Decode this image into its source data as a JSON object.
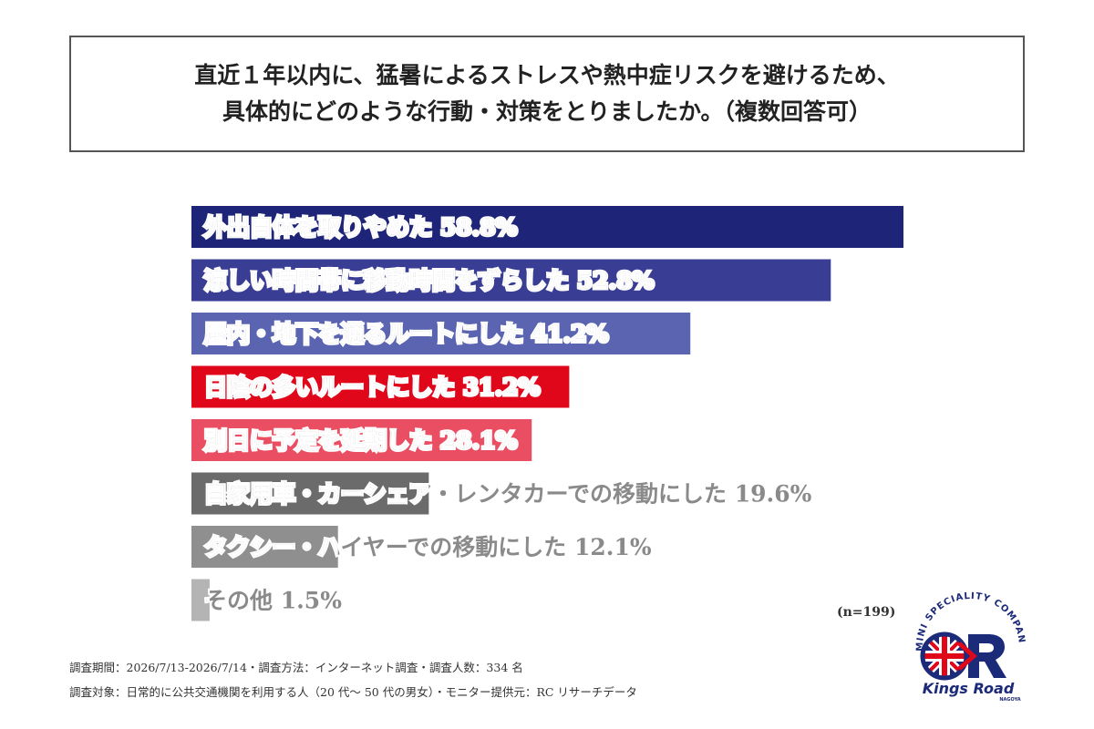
{
  "title": {
    "line1": "直近１年以内に、猛暑によるストレスや熱中症リスクを避けるため、",
    "line2": "具体的にどのような行動・対策をとりましたか。（複数回答可）"
  },
  "chart_data": {
    "type": "bar",
    "orientation": "horizontal",
    "categories": [
      "外出自体を取りやめた",
      "涼しい時間帯に移動時間をずらした",
      "屋内・地下を通るルートにした",
      "日陰の多いルートにした",
      "別日に予定を延期した",
      "自家用車・カーシェア・レンタカーでの移動にした",
      "タクシー・ハイヤーでの移動にした",
      "その他"
    ],
    "values": [
      58.8,
      52.8,
      41.2,
      31.2,
      28.1,
      19.6,
      12.1,
      1.5
    ],
    "value_labels": [
      "58.8%",
      "52.8%",
      "41.2%",
      "31.2%",
      "28.1%",
      "19.6%",
      "12.1%",
      "1.5%"
    ],
    "colors": [
      "#1e2477",
      "#3a3d94",
      "#5a64b0",
      "#e1071b",
      "#ea4e62",
      "#6b6b6b",
      "#8f8f8f",
      "#b4b4b4"
    ],
    "xlim": [
      0,
      60
    ],
    "grid": false,
    "legend": "none",
    "sample_note": "(n=199)"
  },
  "footnotes": {
    "line1": "調査期間：2026/7/13-2026/7/14・調査方法：インターネット調査・調査人数：334 名",
    "line2": "調査対象：日常的に公共交通機関を利用する人（20 代～ 50 代の男女）・モニター提供元：RC リサーチデータ"
  },
  "logo": {
    "arc_text": "MINI SPECIALITY COMPANY",
    "name": "Kings Road",
    "sub": "NAGOYA",
    "colors": {
      "blue": "#1c2a7a",
      "red": "#e1071b"
    }
  }
}
